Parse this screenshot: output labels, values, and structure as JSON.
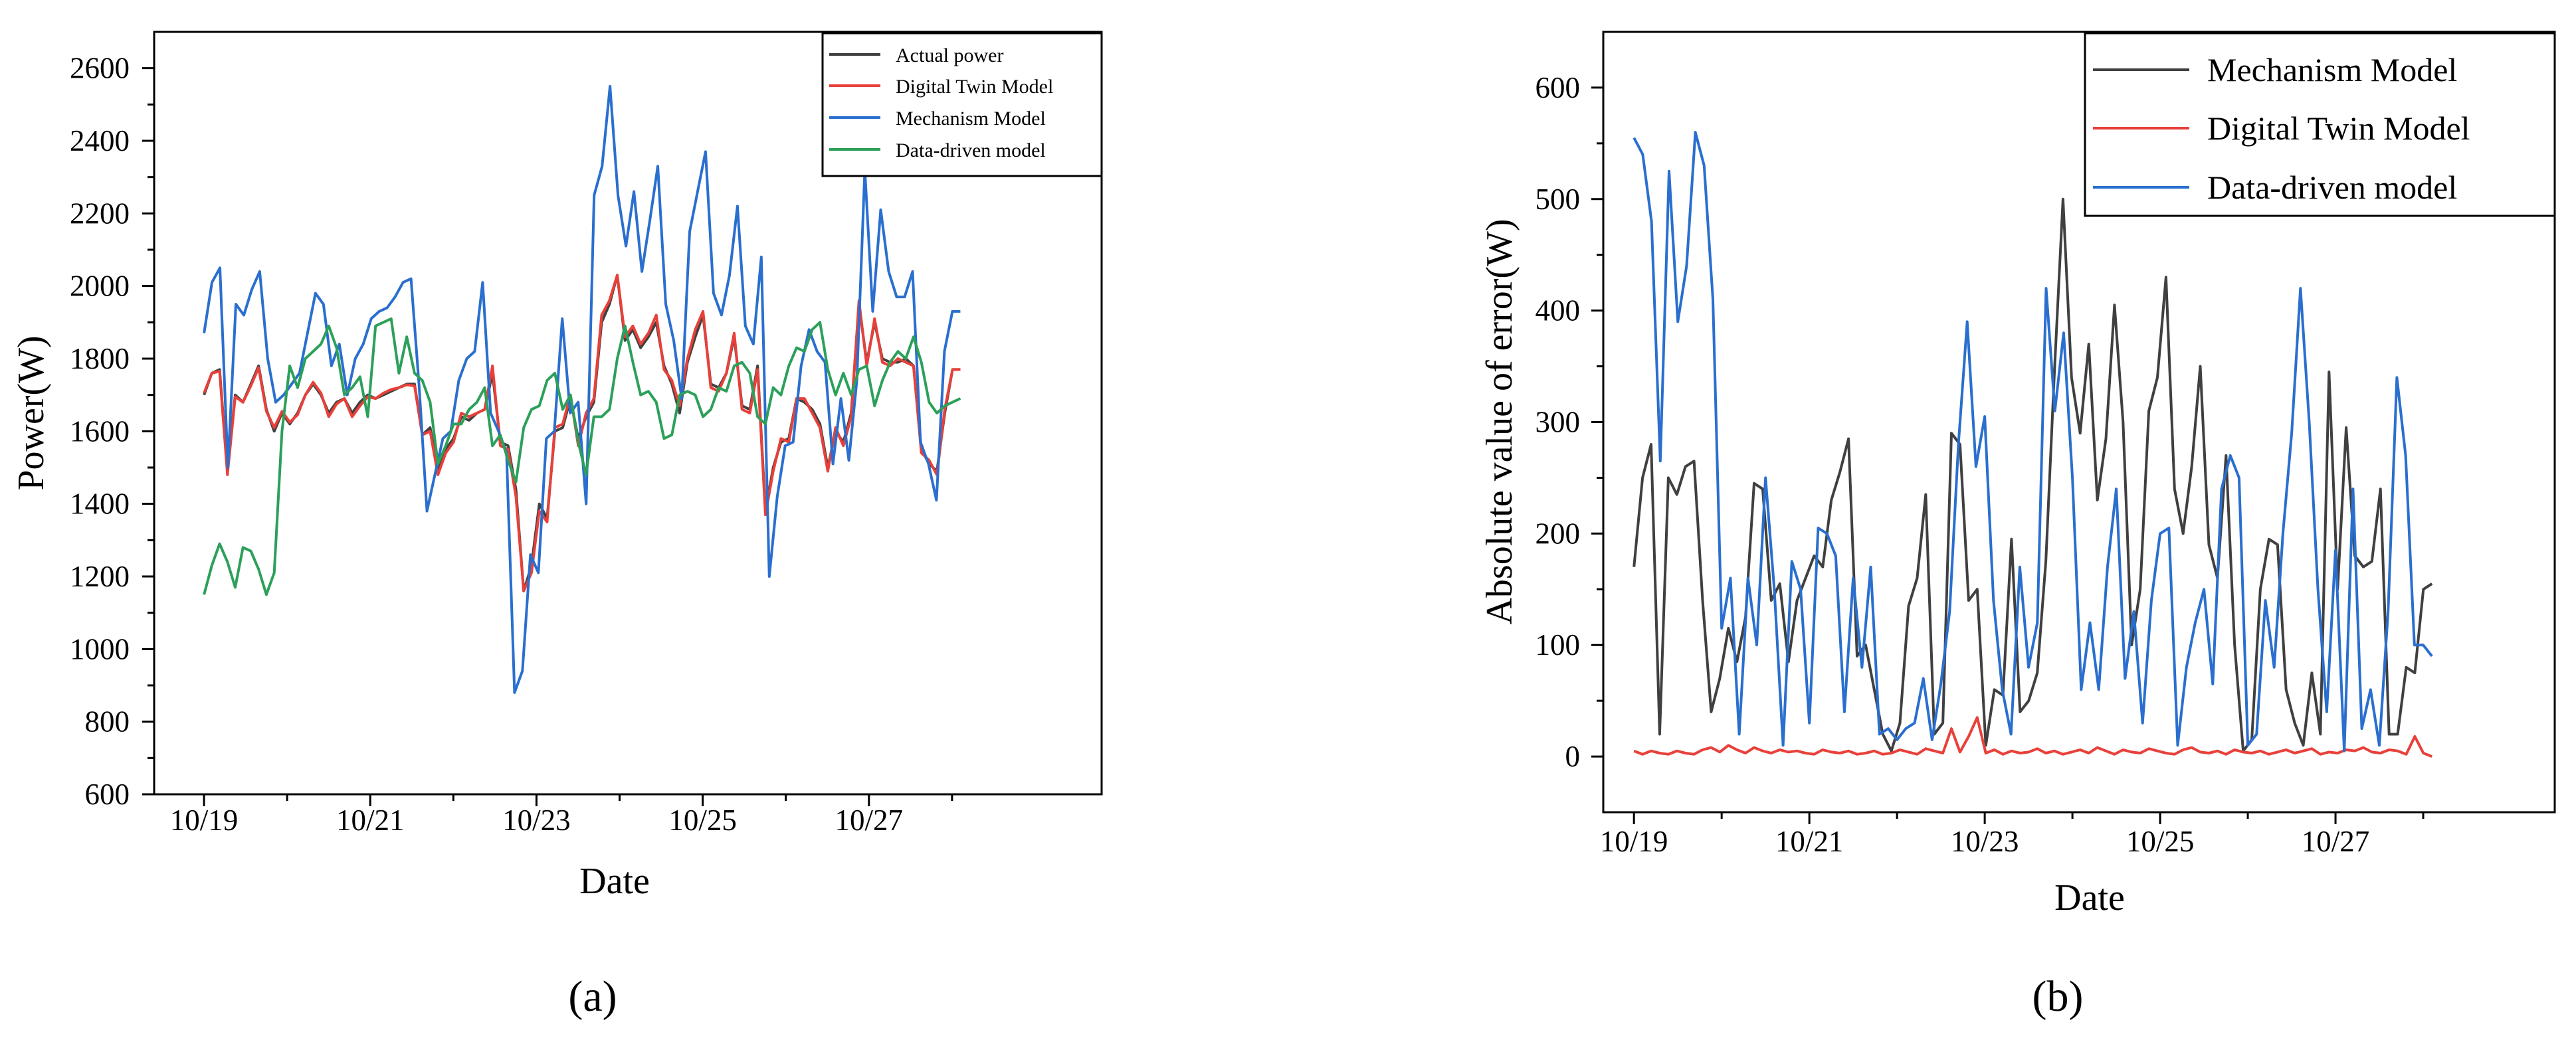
{
  "chart_data": [
    {
      "type": "line",
      "panel": "a",
      "panel_label": "(a)",
      "title": "",
      "xlabel": "Date",
      "ylabel": "Power(W)",
      "ylim": [
        600,
        2700
      ],
      "xlim": [
        -0.6,
        10.8
      ],
      "x_ticks": [
        0,
        1,
        2,
        3,
        4,
        5,
        6,
        7,
        8,
        9
      ],
      "x_tick_labels": [
        "10/19",
        "10/21",
        "10/23",
        "10/25",
        "10/27"
      ],
      "y_ticks": [
        600,
        800,
        1000,
        1200,
        1400,
        1600,
        1800,
        2000,
        2200,
        2400,
        2600
      ],
      "legend_position": "top-right",
      "series": [
        {
          "name": "Actual power",
          "color": "#404040",
          "values": [
            1700,
            1760,
            1770,
            1490,
            1700,
            1680,
            1730,
            1780,
            1660,
            1600,
            1650,
            1620,
            1650,
            1700,
            1730,
            1700,
            1650,
            1680,
            1690,
            1650,
            1680,
            1700,
            1690,
            1700,
            1710,
            1720,
            1730,
            1730,
            1590,
            1610,
            1490,
            1550,
            1580,
            1640,
            1630,
            1650,
            1660,
            1760,
            1570,
            1560,
            1440,
            1160,
            1230,
            1400,
            1360,
            1600,
            1610,
            1690,
            1580,
            1640,
            1680,
            1900,
            1950,
            2030,
            1850,
            1880,
            1830,
            1860,
            1900,
            1780,
            1730,
            1650,
            1790,
            1860,
            1920,
            1730,
            1720,
            1760,
            1860,
            1670,
            1660,
            1780,
            1380,
            1500,
            1570,
            1580,
            1690,
            1680,
            1660,
            1620,
            1500,
            1600,
            1570,
            1650,
            1950,
            1790,
            1900,
            1800,
            1790,
            1790,
            1800,
            1780,
            1550,
            1510,
            1490,
            1650,
            1770,
            1770
          ]
        },
        {
          "name": "Digital Twin Model",
          "color": "#e8403a",
          "values": [
            1705,
            1760,
            1765,
            1480,
            1695,
            1680,
            1725,
            1775,
            1655,
            1610,
            1655,
            1625,
            1645,
            1700,
            1735,
            1705,
            1640,
            1675,
            1690,
            1640,
            1670,
            1695,
            1690,
            1705,
            1715,
            1720,
            1728,
            1725,
            1590,
            1600,
            1480,
            1540,
            1570,
            1650,
            1640,
            1650,
            1660,
            1780,
            1560,
            1550,
            1420,
            1160,
            1210,
            1380,
            1350,
            1610,
            1620,
            1700,
            1560,
            1650,
            1690,
            1920,
            1960,
            2030,
            1860,
            1890,
            1840,
            1870,
            1920,
            1770,
            1740,
            1670,
            1800,
            1880,
            1930,
            1720,
            1710,
            1760,
            1870,
            1660,
            1650,
            1770,
            1370,
            1490,
            1580,
            1570,
            1690,
            1690,
            1650,
            1610,
            1490,
            1610,
            1560,
            1640,
            1960,
            1780,
            1910,
            1790,
            1780,
            1800,
            1790,
            1780,
            1540,
            1520,
            1480,
            1660,
            1770,
            1770
          ]
        },
        {
          "name": "Mechanism Model",
          "color": "#2a6fcf",
          "values": [
            1870,
            2010,
            2050,
            1500,
            1950,
            1920,
            1990,
            2040,
            1800,
            1680,
            1700,
            1730,
            1760,
            1870,
            1980,
            1950,
            1780,
            1840,
            1700,
            1800,
            1840,
            1910,
            1930,
            1940,
            1970,
            2010,
            2020,
            1730,
            1380,
            1480,
            1580,
            1600,
            1740,
            1800,
            1820,
            2010,
            1650,
            1600,
            1540,
            880,
            940,
            1260,
            1210,
            1580,
            1600,
            1910,
            1650,
            1680,
            1400,
            2250,
            2330,
            2550,
            2250,
            2110,
            2260,
            2040,
            2180,
            2330,
            1950,
            1850,
            1690,
            2150,
            2260,
            2370,
            1980,
            1920,
            2030,
            2220,
            1890,
            1840,
            2080,
            1200,
            1420,
            1560,
            1570,
            1780,
            1880,
            1820,
            1790,
            1510,
            1690,
            1520,
            1740,
            2320,
            1930,
            2210,
            2040,
            1970,
            1970,
            2040,
            1570,
            1510,
            1410,
            1820,
            1930,
            1930
          ]
        },
        {
          "name": "Data-driven model",
          "color": "#2ca05a",
          "values": [
            1150,
            1230,
            1290,
            1240,
            1170,
            1280,
            1270,
            1220,
            1150,
            1210,
            1600,
            1780,
            1720,
            1800,
            1820,
            1840,
            1890,
            1830,
            1700,
            1720,
            1750,
            1640,
            1890,
            1900,
            1910,
            1760,
            1860,
            1760,
            1740,
            1680,
            1510,
            1560,
            1620,
            1620,
            1660,
            1680,
            1720,
            1560,
            1590,
            1520,
            1460,
            1610,
            1660,
            1670,
            1740,
            1760,
            1660,
            1700,
            1570,
            1480,
            1640,
            1640,
            1660,
            1800,
            1890,
            1790,
            1700,
            1710,
            1680,
            1580,
            1590,
            1700,
            1710,
            1700,
            1640,
            1660,
            1720,
            1710,
            1780,
            1790,
            1760,
            1640,
            1620,
            1720,
            1700,
            1780,
            1830,
            1820,
            1880,
            1900,
            1770,
            1700,
            1760,
            1700,
            1770,
            1780,
            1670,
            1740,
            1790,
            1820,
            1800,
            1860,
            1790,
            1680,
            1650,
            1670,
            1680,
            1690
          ]
        }
      ]
    },
    {
      "type": "line",
      "panel": "b",
      "panel_label": "(b)",
      "title": "",
      "xlabel": "Date",
      "ylabel": "Absolute value of error(W)",
      "ylim": [
        -50,
        650
      ],
      "xlim": [
        -0.35,
        10.5
      ],
      "x_ticks": [
        0,
        1,
        2,
        3,
        4,
        5,
        6,
        7,
        8,
        9
      ],
      "x_tick_labels": [
        "10/19",
        "10/21",
        "10/23",
        "10/25",
        "10/27"
      ],
      "y_ticks": [
        0,
        100,
        200,
        300,
        400,
        500,
        600
      ],
      "legend_position": "top-right",
      "series": [
        {
          "name": "Mechanism Model",
          "color": "#404040",
          "values": [
            170,
            250,
            280,
            20,
            250,
            235,
            260,
            265,
            140,
            40,
            70,
            115,
            85,
            125,
            245,
            240,
            140,
            155,
            85,
            140,
            160,
            180,
            170,
            230,
            255,
            285,
            90,
            100,
            60,
            20,
            5,
            30,
            135,
            160,
            235,
            20,
            30,
            290,
            280,
            140,
            150,
            10,
            60,
            55,
            195,
            40,
            50,
            75,
            175,
            345,
            500,
            340,
            290,
            370,
            230,
            285,
            405,
            300,
            100,
            150,
            310,
            340,
            430,
            240,
            200,
            260,
            350,
            190,
            160,
            270,
            100,
            5,
            15,
            150,
            195,
            190,
            60,
            30,
            10,
            75,
            20,
            345,
            150,
            295,
            180,
            170,
            175,
            240,
            20,
            20,
            80,
            75,
            150,
            155
          ]
        },
        {
          "name": "Digital Twin Model",
          "color": "#e8403a",
          "values": [
            5,
            2,
            5,
            3,
            2,
            5,
            3,
            2,
            6,
            8,
            4,
            10,
            6,
            3,
            8,
            5,
            3,
            6,
            4,
            5,
            3,
            2,
            6,
            4,
            3,
            5,
            2,
            3,
            5,
            2,
            3,
            6,
            4,
            2,
            7,
            5,
            3,
            25,
            4,
            18,
            35,
            3,
            6,
            2,
            5,
            3,
            4,
            7,
            3,
            5,
            2,
            4,
            6,
            3,
            8,
            5,
            2,
            6,
            4,
            3,
            7,
            5,
            3,
            2,
            6,
            8,
            4,
            3,
            5,
            2,
            6,
            4,
            3,
            5,
            2,
            4,
            6,
            3,
            5,
            7,
            2,
            4,
            3,
            6,
            5,
            8,
            4,
            3,
            6,
            5,
            2,
            18,
            3,
            0
          ]
        },
        {
          "name": "Data-driven model",
          "color": "#2a6fcf",
          "values": [
            555,
            540,
            480,
            265,
            525,
            390,
            440,
            560,
            530,
            410,
            115,
            160,
            20,
            160,
            100,
            250,
            150,
            10,
            175,
            150,
            30,
            205,
            200,
            180,
            40,
            160,
            80,
            170,
            20,
            25,
            15,
            25,
            30,
            70,
            15,
            65,
            130,
            280,
            390,
            260,
            305,
            140,
            60,
            20,
            170,
            80,
            120,
            420,
            310,
            380,
            250,
            60,
            120,
            60,
            170,
            240,
            70,
            130,
            30,
            140,
            200,
            205,
            10,
            80,
            120,
            150,
            65,
            240,
            270,
            250,
            10,
            20,
            140,
            80,
            200,
            290,
            420,
            300,
            150,
            40,
            185,
            5,
            240,
            25,
            60,
            10,
            130,
            340,
            270,
            100,
            100,
            90
          ]
        }
      ]
    }
  ]
}
